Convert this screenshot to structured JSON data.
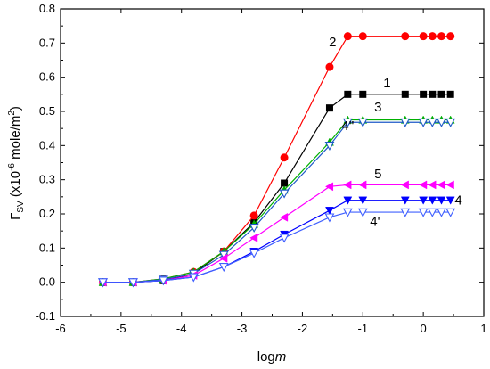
{
  "chart_data": {
    "type": "line",
    "xlabel_parts": {
      "base": "log",
      "italic": "m"
    },
    "ylabel_parts": {
      "symbol": "Γ",
      "sub": "SV",
      "pre": " (x10",
      "exp1": "-6",
      "mid": " mole/m",
      "exp2": "2",
      "post": ")"
    },
    "xlim": [
      -6,
      1
    ],
    "ylim": [
      -0.1,
      0.8
    ],
    "xticks": [
      -6,
      -5,
      -4,
      -3,
      -2,
      -1,
      0,
      1
    ],
    "yticks": [
      -0.1,
      0.0,
      0.1,
      0.2,
      0.3,
      0.4,
      0.5,
      0.6,
      0.7,
      0.8
    ],
    "xtick_labels": [
      "-6",
      "-5",
      "-4",
      "-3",
      "-2",
      "-1",
      "0",
      "1"
    ],
    "ytick_labels": [
      "-0.1",
      "0.0",
      "0.1",
      "0.2",
      "0.3",
      "0.4",
      "0.5",
      "0.6",
      "0.7",
      "0.8"
    ],
    "series": [
      {
        "name": "1",
        "color": "#000000",
        "marker": "square",
        "x": [
          -5.3,
          -4.8,
          -4.3,
          -3.8,
          -3.3,
          -2.8,
          -2.3,
          -1.55,
          -1.25,
          -1.0,
          -0.3,
          0.0,
          0.15,
          0.3,
          0.45
        ],
        "y": [
          0.0,
          0.0,
          0.005,
          0.025,
          0.09,
          0.175,
          0.29,
          0.51,
          0.55,
          0.55,
          0.55,
          0.55,
          0.55,
          0.55,
          0.55
        ]
      },
      {
        "name": "2",
        "color": "#ff0000",
        "marker": "circle",
        "x": [
          -5.3,
          -4.8,
          -4.3,
          -3.8,
          -3.3,
          -2.8,
          -2.3,
          -1.55,
          -1.25,
          -1.0,
          -0.3,
          0.0,
          0.15,
          0.3,
          0.45
        ],
        "y": [
          0.0,
          0.0,
          0.01,
          0.03,
          0.09,
          0.195,
          0.365,
          0.63,
          0.72,
          0.72,
          0.72,
          0.72,
          0.72,
          0.72,
          0.72
        ]
      },
      {
        "name": "3",
        "color": "#00b000",
        "marker": "triangle-up",
        "x": [
          -5.3,
          -4.8,
          -4.3,
          -3.8,
          -3.3,
          -2.8,
          -2.3,
          -1.55,
          -1.25,
          -1.0,
          -0.3,
          0.0,
          0.15,
          0.3,
          0.45
        ],
        "y": [
          0.0,
          0.0,
          0.01,
          0.03,
          0.09,
          0.17,
          0.27,
          0.41,
          0.475,
          0.475,
          0.475,
          0.475,
          0.475,
          0.475,
          0.475
        ]
      },
      {
        "name": "4''",
        "color": "#1e5ac8",
        "marker": "triangle-down-open",
        "x": [
          -5.3,
          -4.8,
          -4.3,
          -3.8,
          -3.3,
          -2.8,
          -2.3,
          -1.55,
          -1.25,
          -1.0,
          -0.3,
          0.0,
          0.15,
          0.3,
          0.45
        ],
        "y": [
          0.0,
          0.0,
          0.008,
          0.025,
          0.08,
          0.16,
          0.26,
          0.4,
          0.468,
          0.468,
          0.468,
          0.468,
          0.468,
          0.468,
          0.468
        ]
      },
      {
        "name": "5",
        "color": "#ff00ff",
        "marker": "triangle-left",
        "x": [
          -5.3,
          -4.8,
          -4.3,
          -3.8,
          -3.3,
          -2.8,
          -2.3,
          -1.55,
          -1.25,
          -1.0,
          -0.3,
          0.0,
          0.15,
          0.3,
          0.45
        ],
        "y": [
          0.0,
          0.0,
          0.005,
          0.02,
          0.07,
          0.13,
          0.19,
          0.28,
          0.285,
          0.285,
          0.285,
          0.285,
          0.285,
          0.285,
          0.285
        ]
      },
      {
        "name": "4",
        "color": "#0000ff",
        "marker": "triangle-down",
        "x": [
          -5.3,
          -4.8,
          -4.3,
          -3.8,
          -3.3,
          -2.8,
          -2.3,
          -1.55,
          -1.25,
          -1.0,
          -0.3,
          0.0,
          0.15,
          0.3,
          0.45
        ],
        "y": [
          0.0,
          0.0,
          0.005,
          0.015,
          0.045,
          0.09,
          0.14,
          0.21,
          0.24,
          0.24,
          0.24,
          0.24,
          0.24,
          0.24,
          0.24
        ]
      },
      {
        "name": "4'",
        "color": "#4060ff",
        "marker": "triangle-down-open",
        "x": [
          -5.3,
          -4.8,
          -4.3,
          -3.8,
          -3.3,
          -2.8,
          -2.3,
          -1.55,
          -1.25,
          -1.0,
          -0.3,
          0.0,
          0.15,
          0.3,
          0.45
        ],
        "y": [
          0.0,
          0.0,
          0.005,
          0.015,
          0.045,
          0.085,
          0.13,
          0.19,
          0.205,
          0.205,
          0.205,
          0.205,
          0.205,
          0.205,
          0.205
        ]
      }
    ],
    "curve_labels": [
      {
        "text": "2",
        "x": -1.5,
        "y": 0.69
      },
      {
        "text": "1",
        "x": -0.6,
        "y": 0.57
      },
      {
        "text": "3",
        "x": -0.75,
        "y": 0.5
      },
      {
        "text": "4''",
        "x": -1.25,
        "y": 0.445
      },
      {
        "text": "5",
        "x": -0.75,
        "y": 0.305
      },
      {
        "text": "4",
        "x": 0.58,
        "y": 0.228
      },
      {
        "text": "4'",
        "x": -0.8,
        "y": 0.165
      }
    ]
  }
}
